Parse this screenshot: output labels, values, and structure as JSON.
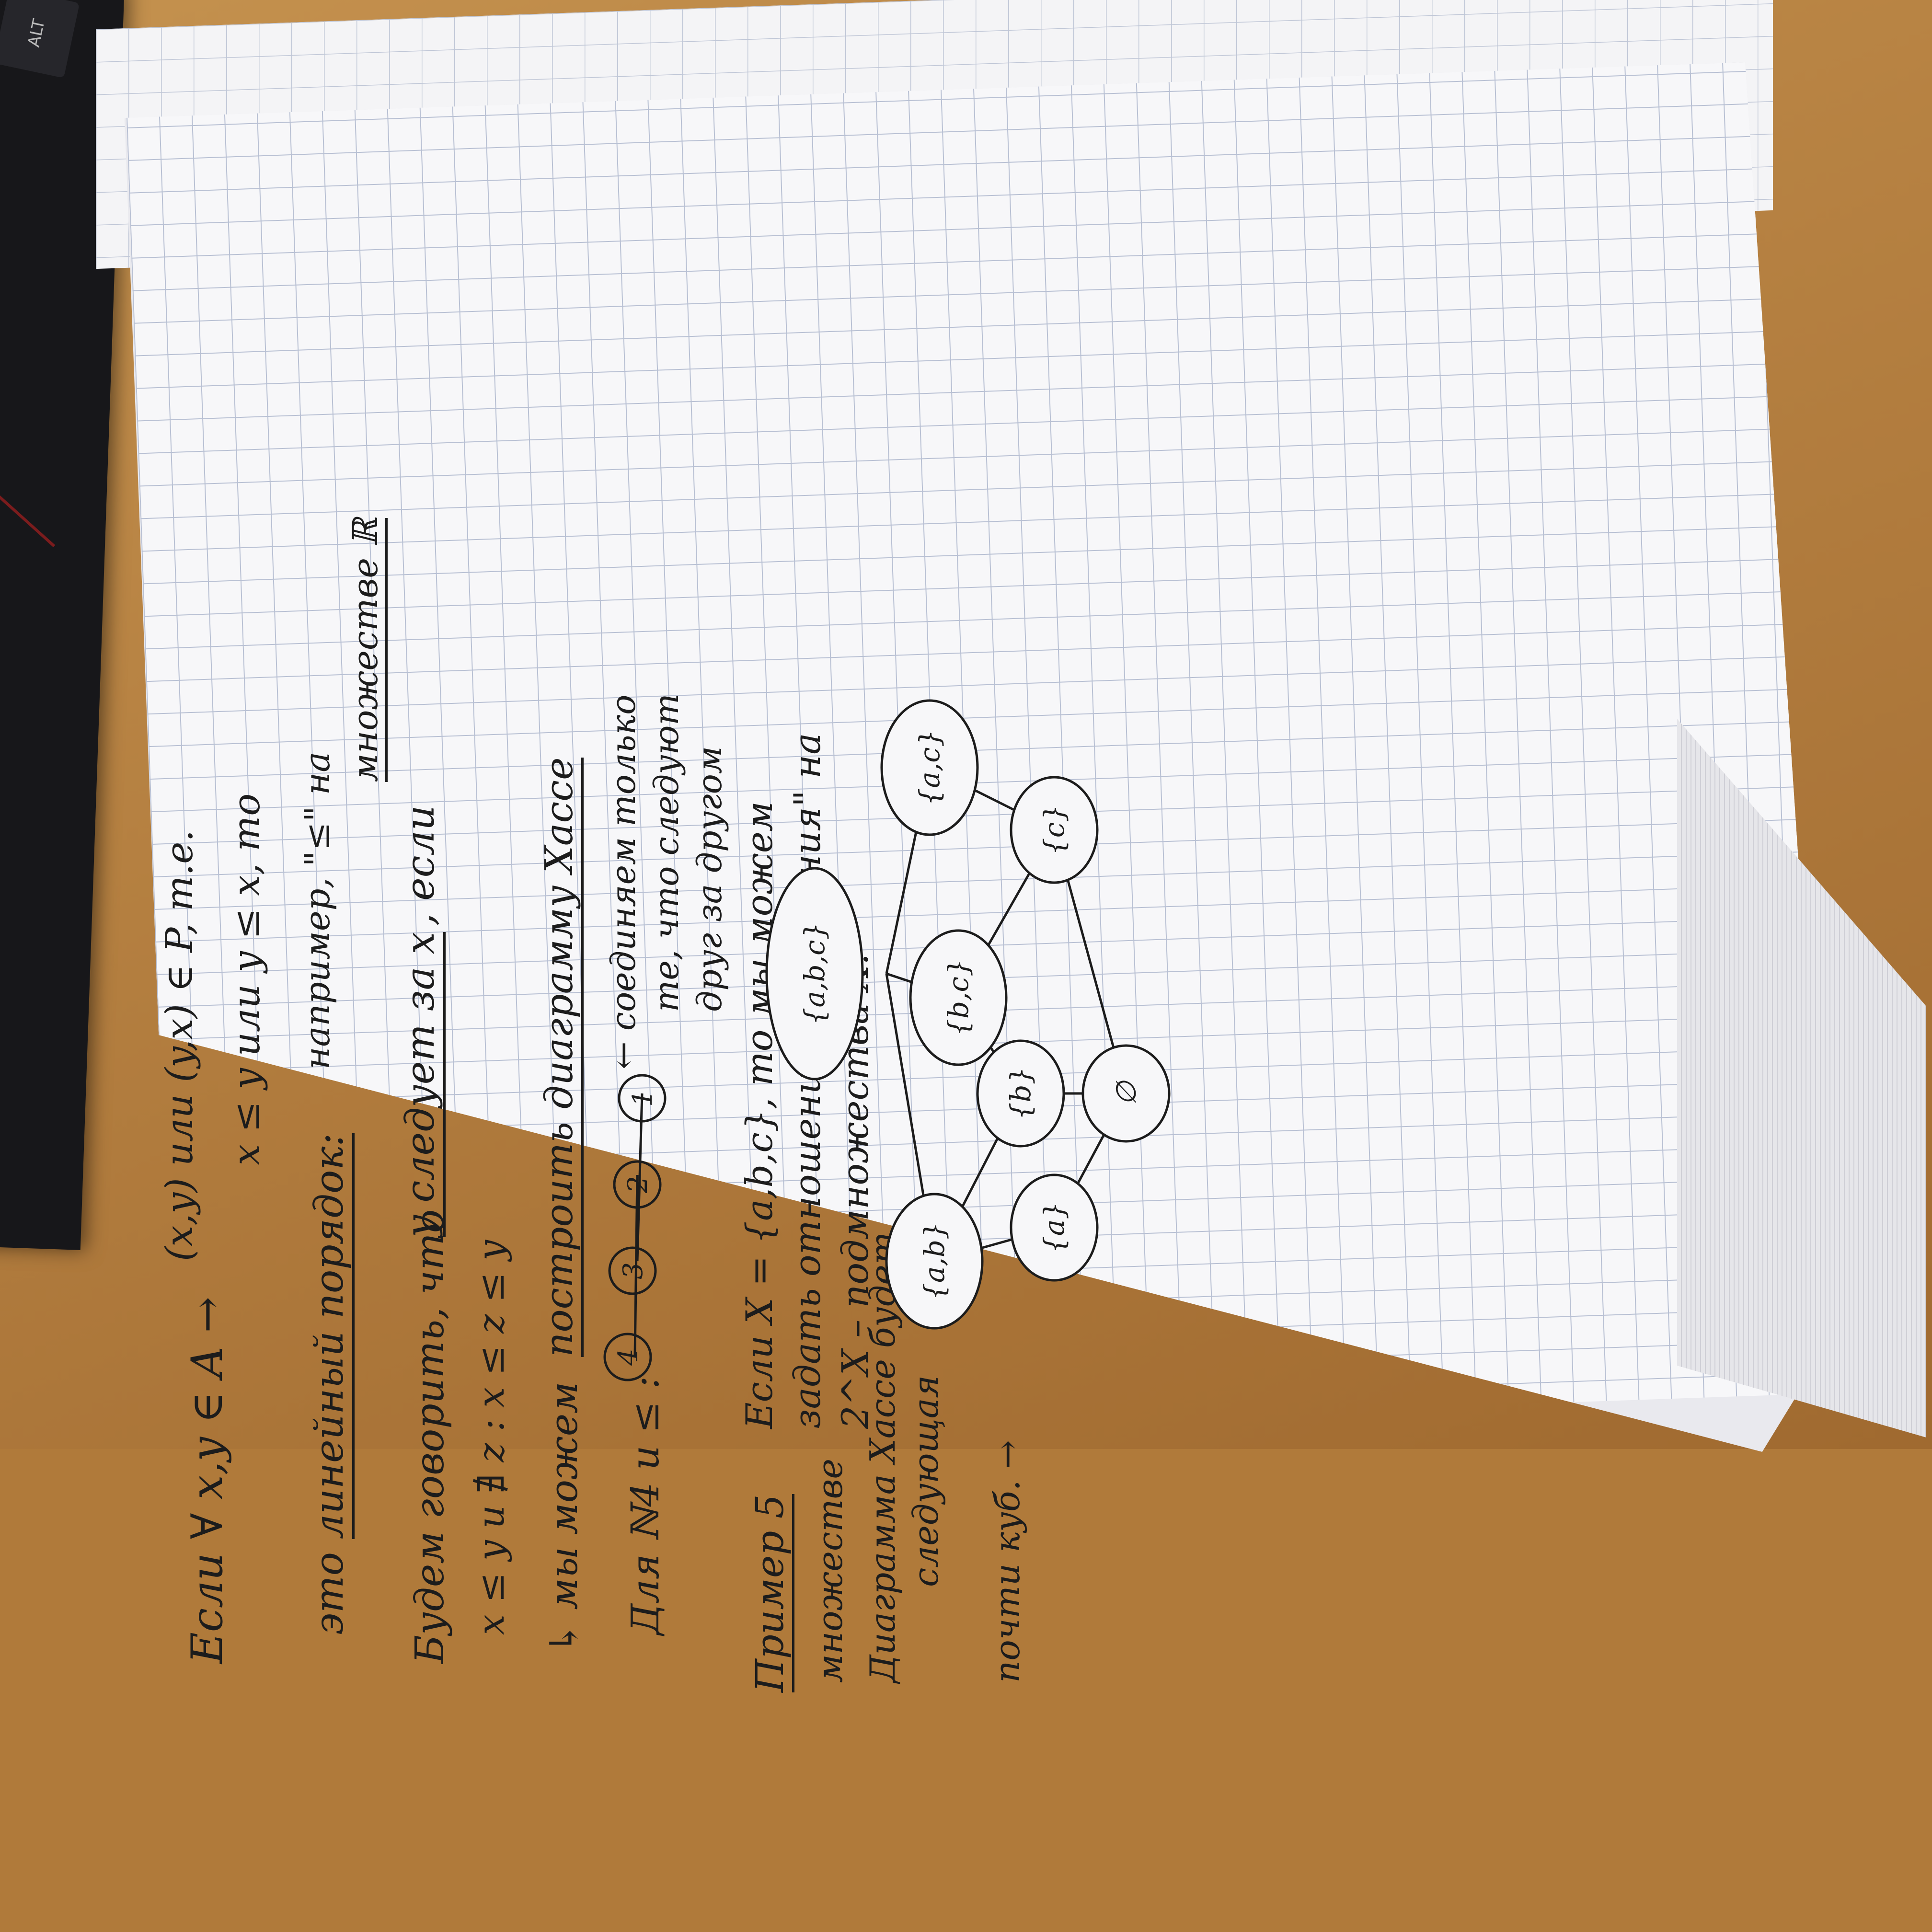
{
  "keyboard": {
    "key_label": "ALT"
  },
  "notes": {
    "line_1_lhs": "Если ∀ x,y ∈ A →",
    "line_1_mid": "(x,y) или (y,x) ∈ P, т.е.",
    "line_1_cond": "x ≤ y или y ≤ x, то",
    "line_2_intro": "это",
    "line_2_term": "линейный порядок:",
    "line_2_tail": "например, \"≤\" на",
    "line_2_end": "множестве ℝ",
    "line_3_intro": "Будем говорить, что",
    "line_3_term": "y следует за x",
    "line_3_tail": ", если",
    "line_3b": "x ≤ y и ∄ z : x ≤ z ≤ y",
    "line_4": "↳ мы можем",
    "line_4_term": "построить диаграмму Хассе",
    "line_5": "Для ℕ4 и ≤ :",
    "chain_note_1": "← соединяем только",
    "chain_note_2": "те, что следуют",
    "chain_note_3": "друг за другом",
    "example_label": "Пример 5",
    "example_line_1": "Если X = {a,b,c}, то мы можем",
    "example_line_2": "задать отношение \"включения\" на",
    "example_line_3": "2^X – подмножества X.",
    "example_line_4a": "множестве",
    "example_line_4b": "Диаграмма Хассе будет",
    "example_line_4c": "следующая",
    "example_line_5": "почти куб. →"
  },
  "chain_nodes": [
    "4",
    "3",
    "2",
    "1"
  ],
  "hasse_nodes": {
    "abc": "{a,b,c}",
    "ab": "{a,b}",
    "bc": "{b,c}",
    "ac": "{a,c}",
    "a": "{a}",
    "b": "{b}",
    "c": "{c}",
    "empty": "∅"
  }
}
